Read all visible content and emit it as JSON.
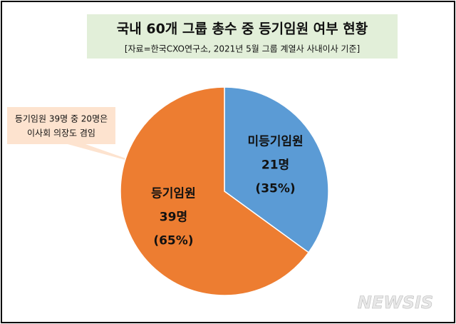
{
  "chart_data": {
    "type": "pie",
    "title": "국내 60개 그룹 총수 중 등기임원 여부 현황",
    "subtitle": "[자료=한국CXO연구소, 2021년 5월 그룹 계열사 사내이사 기준]",
    "annotation": [
      "등기임원 39명 중 20명은",
      "이사회 의장도 겸임"
    ],
    "categories": [
      "미등기임원",
      "등기임원"
    ],
    "values": [
      21,
      39
    ],
    "value_labels": [
      "21명",
      "39명"
    ],
    "percents": [
      35,
      65
    ],
    "percent_labels": [
      "(35%)",
      "(65%)"
    ],
    "colors": [
      "#5b9bd5",
      "#ed7d31"
    ],
    "watermark": "NEWSIS"
  }
}
